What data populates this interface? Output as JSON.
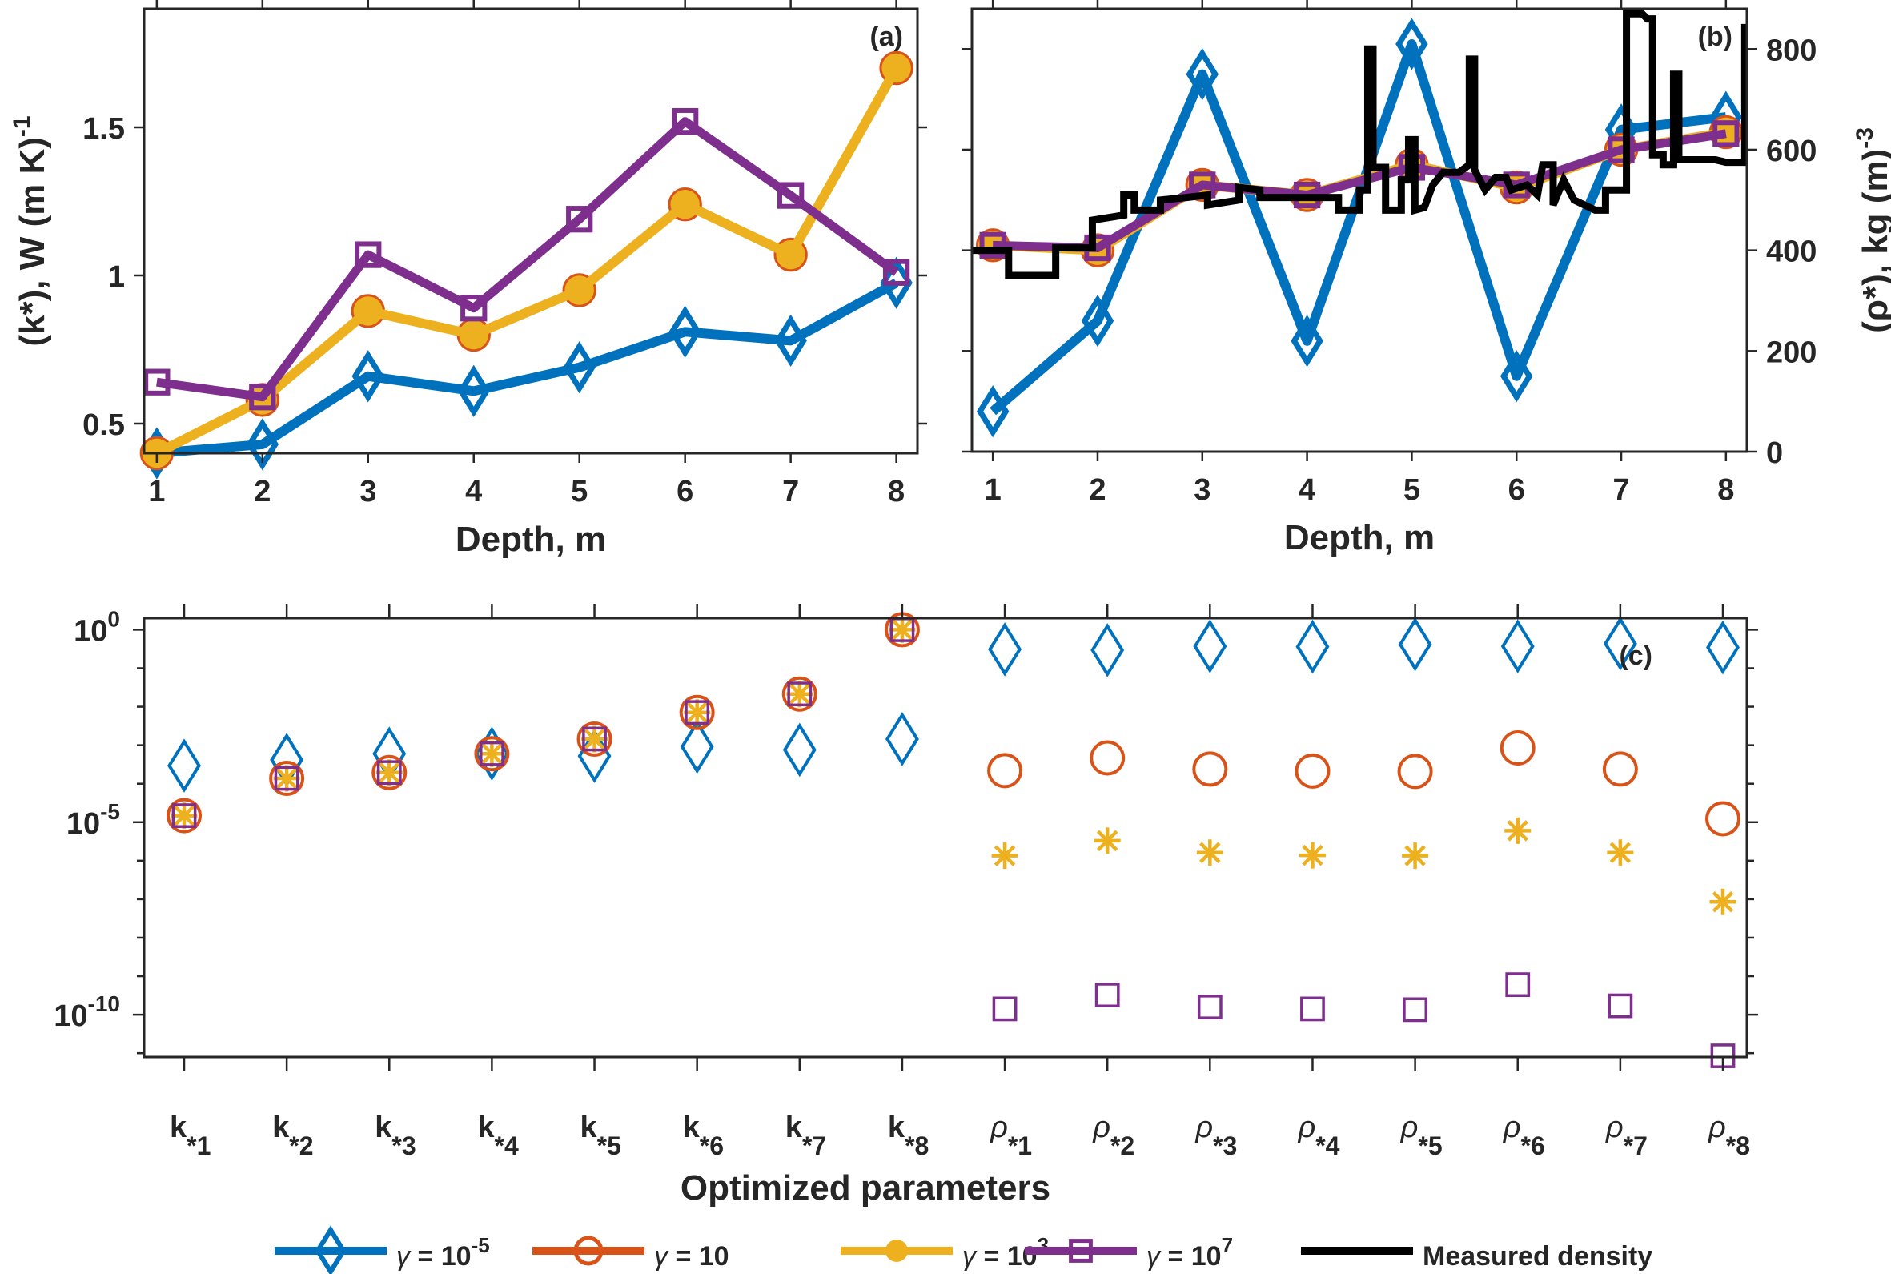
{
  "colors": {
    "gamma_1e-5": "#0072BD",
    "gamma_10": "#D95319",
    "gamma_1e3": "#EDB120",
    "gamma_1e7": "#7E2F8E",
    "measured": "#000000",
    "axis": "#262626"
  },
  "legend": {
    "items": [
      {
        "key": "g1",
        "prefix": "γ = 10",
        "sup": "-5",
        "marker": "diamond",
        "color": "#0072BD"
      },
      {
        "key": "g2",
        "prefix": "γ = 10",
        "sup": "",
        "marker": "circle",
        "color": "#D95319"
      },
      {
        "key": "g3",
        "prefix": "γ = 10",
        "sup": "3",
        "marker": "filled-circle",
        "color": "#EDB120"
      },
      {
        "key": "g4",
        "prefix": "γ = 10",
        "sup": "7",
        "marker": "square",
        "color": "#7E2F8E"
      },
      {
        "key": "meas",
        "prefix": "Measured density",
        "sup": "",
        "marker": "none",
        "color": "#000000"
      }
    ],
    "placement": "bottom-center"
  },
  "chart_data": [
    {
      "id": "a",
      "type": "line",
      "panel_label": "(a)",
      "xlabel": "Depth, m",
      "ylabel": "(k*), W (m K)",
      "ylabel_sup": "-1",
      "x": [
        1,
        2,
        3,
        4,
        5,
        6,
        7,
        8
      ],
      "xticks": [
        "1",
        "2",
        "3",
        "4",
        "5",
        "6",
        "7",
        "8"
      ],
      "xlim": [
        0.88,
        8.2
      ],
      "ylim": [
        0.4,
        1.9
      ],
      "yticks": [
        0.5,
        1,
        1.5
      ],
      "ytick_labels": [
        "0.5",
        "1",
        "1.5"
      ],
      "grid": false,
      "series": [
        {
          "name": "γ = 10^-5",
          "marker": "diamond",
          "color": "#0072BD",
          "values": [
            0.4,
            0.43,
            0.66,
            0.61,
            0.69,
            0.81,
            0.78,
            0.975
          ]
        },
        {
          "name": "γ = 10",
          "marker": "circle",
          "color": "#D95319",
          "values": [
            0.4,
            0.58,
            0.88,
            0.8,
            0.95,
            1.24,
            1.07,
            1.7
          ]
        },
        {
          "name": "γ = 10^3",
          "marker": "filled-circle",
          "color": "#EDB120",
          "values": [
            0.4,
            0.58,
            0.88,
            0.8,
            0.95,
            1.24,
            1.07,
            1.7
          ]
        },
        {
          "name": "γ = 10^7",
          "marker": "square",
          "color": "#7E2F8E",
          "values": [
            0.64,
            0.59,
            1.07,
            0.89,
            1.19,
            1.52,
            1.27,
            1.01
          ]
        }
      ]
    },
    {
      "id": "b",
      "type": "line",
      "panel_label": "(b)",
      "xlabel": "Depth, m",
      "ylabel": "(ρ*), kg (m)",
      "ylabel_sup": "-3",
      "yaxis_side": "right",
      "x": [
        1,
        2,
        3,
        4,
        5,
        6,
        7,
        8
      ],
      "xticks": [
        "1",
        "2",
        "3",
        "4",
        "5",
        "6",
        "7",
        "8"
      ],
      "xlim": [
        0.8,
        8.2
      ],
      "ylim": [
        0,
        880
      ],
      "yticks": [
        0,
        200,
        400,
        600,
        800
      ],
      "ytick_labels": [
        "0",
        "200",
        "400",
        "600",
        "800"
      ],
      "grid": false,
      "series": [
        {
          "name": "γ = 10^-5",
          "marker": "diamond",
          "color": "#0072BD",
          "values": [
            80,
            260,
            750,
            220,
            810,
            150,
            640,
            665
          ]
        },
        {
          "name": "γ = 10",
          "marker": "circle",
          "color": "#D95319",
          "values": [
            410,
            400,
            530,
            510,
            570,
            525,
            600,
            635
          ]
        },
        {
          "name": "γ = 10^3",
          "marker": "filled-circle",
          "color": "#EDB120",
          "values": [
            410,
            400,
            530,
            510,
            570,
            525,
            600,
            635
          ]
        },
        {
          "name": "γ = 10^7",
          "marker": "square",
          "color": "#7E2F8E",
          "values": [
            410,
            405,
            530,
            510,
            565,
            530,
            600,
            632
          ]
        }
      ],
      "measured_density": {
        "name": "Measured density",
        "color": "#000000",
        "points": [
          [
            0.8,
            400
          ],
          [
            1.15,
            400
          ],
          [
            1.15,
            350
          ],
          [
            1.6,
            350
          ],
          [
            1.6,
            405
          ],
          [
            1.95,
            405
          ],
          [
            1.95,
            460
          ],
          [
            2.1,
            465
          ],
          [
            2.25,
            470
          ],
          [
            2.25,
            510
          ],
          [
            2.35,
            510
          ],
          [
            2.35,
            480
          ],
          [
            2.6,
            480
          ],
          [
            2.6,
            500
          ],
          [
            2.85,
            505
          ],
          [
            3.05,
            510
          ],
          [
            3.05,
            490
          ],
          [
            3.2,
            495
          ],
          [
            3.35,
            500
          ],
          [
            3.35,
            525
          ],
          [
            3.55,
            520
          ],
          [
            3.55,
            505
          ],
          [
            4.3,
            505
          ],
          [
            4.3,
            480
          ],
          [
            4.5,
            480
          ],
          [
            4.5,
            520
          ],
          [
            4.58,
            520
          ],
          [
            4.58,
            800
          ],
          [
            4.63,
            800
          ],
          [
            4.63,
            565
          ],
          [
            4.75,
            565
          ],
          [
            4.75,
            480
          ],
          [
            4.9,
            480
          ],
          [
            4.9,
            540
          ],
          [
            4.97,
            540
          ],
          [
            4.97,
            620
          ],
          [
            5.03,
            620
          ],
          [
            5.03,
            480
          ],
          [
            5.12,
            485
          ],
          [
            5.2,
            530
          ],
          [
            5.3,
            555
          ],
          [
            5.45,
            555
          ],
          [
            5.55,
            570
          ],
          [
            5.55,
            780
          ],
          [
            5.6,
            780
          ],
          [
            5.6,
            560
          ],
          [
            5.7,
            520
          ],
          [
            5.8,
            545
          ],
          [
            5.9,
            545
          ],
          [
            5.95,
            520
          ],
          [
            6.1,
            530
          ],
          [
            6.2,
            510
          ],
          [
            6.25,
            570
          ],
          [
            6.35,
            570
          ],
          [
            6.35,
            490
          ],
          [
            6.45,
            540
          ],
          [
            6.55,
            500
          ],
          [
            6.65,
            490
          ],
          [
            6.75,
            480
          ],
          [
            6.85,
            480
          ],
          [
            6.85,
            520
          ],
          [
            7.05,
            520
          ],
          [
            7.05,
            870
          ],
          [
            7.2,
            870
          ],
          [
            7.25,
            860
          ],
          [
            7.3,
            860
          ],
          [
            7.3,
            590
          ],
          [
            7.4,
            590
          ],
          [
            7.4,
            570
          ],
          [
            7.5,
            570
          ],
          [
            7.5,
            750
          ],
          [
            7.55,
            750
          ],
          [
            7.55,
            580
          ],
          [
            7.9,
            580
          ],
          [
            8.0,
            575
          ],
          [
            8.18,
            575
          ],
          [
            8.18,
            850
          ]
        ]
      }
    },
    {
      "id": "c",
      "type": "scatter",
      "panel_label": "(c)",
      "xlabel": "Optimized parameters",
      "ylabel": "",
      "yscale": "log",
      "categories": [
        {
          "base": "k",
          "sub": "*1"
        },
        {
          "base": "k",
          "sub": "*2"
        },
        {
          "base": "k",
          "sub": "*3"
        },
        {
          "base": "k",
          "sub": "*4"
        },
        {
          "base": "k",
          "sub": "*5"
        },
        {
          "base": "k",
          "sub": "*6"
        },
        {
          "base": "k",
          "sub": "*7"
        },
        {
          "base": "k",
          "sub": "*8"
        },
        {
          "base": "ρ",
          "sub": "*1"
        },
        {
          "base": "ρ",
          "sub": "*2"
        },
        {
          "base": "ρ",
          "sub": "*3"
        },
        {
          "base": "ρ",
          "sub": "*4"
        },
        {
          "base": "ρ",
          "sub": "*5"
        },
        {
          "base": "ρ",
          "sub": "*6"
        },
        {
          "base": "ρ",
          "sub": "*7"
        },
        {
          "base": "ρ",
          "sub": "*8"
        }
      ],
      "ylim_log10": [
        -11.1,
        0.3
      ],
      "yticks_log10": [
        0,
        -5,
        -10
      ],
      "ytick_labels": [
        {
          "base": "10",
          "sup": "0"
        },
        {
          "base": "10",
          "sup": "-5"
        },
        {
          "base": "10",
          "sup": "-10"
        }
      ],
      "grid": false,
      "series_log10": [
        {
          "name": "γ = 10^-5",
          "marker": "diamond",
          "color": "#0072BD",
          "values": [
            -3.53,
            -3.38,
            -3.22,
            -3.22,
            -3.28,
            -3.04,
            -3.12,
            -2.84,
            -0.51,
            -0.53,
            -0.43,
            -0.44,
            -0.38,
            -0.43,
            -0.36,
            -0.46
          ]
        },
        {
          "name": "γ = 10",
          "marker": "circle",
          "color": "#D95319",
          "values": [
            -4.83,
            -3.86,
            -3.71,
            -3.22,
            -2.84,
            -2.15,
            -1.67,
            0.0,
            -3.66,
            -3.33,
            -3.62,
            -3.67,
            -3.68,
            -3.07,
            -3.62,
            -4.91
          ]
        },
        {
          "name": "γ = 10^3",
          "marker": "asterisk",
          "color": "#EDB120",
          "values": [
            -4.83,
            -3.86,
            -3.71,
            -3.22,
            -2.84,
            -2.15,
            -1.67,
            0.0,
            -5.87,
            -5.48,
            -5.79,
            -5.86,
            -5.87,
            -5.22,
            -5.79,
            -7.07
          ]
        },
        {
          "name": "γ = 10^7",
          "marker": "square",
          "color": "#7E2F8E",
          "values": [
            -4.83,
            -3.86,
            -3.71,
            -3.22,
            -2.84,
            -2.15,
            -1.67,
            0.0,
            -9.85,
            -9.49,
            -9.8,
            -9.85,
            -9.87,
            -9.22,
            -9.77,
            -11.07
          ]
        }
      ]
    }
  ]
}
